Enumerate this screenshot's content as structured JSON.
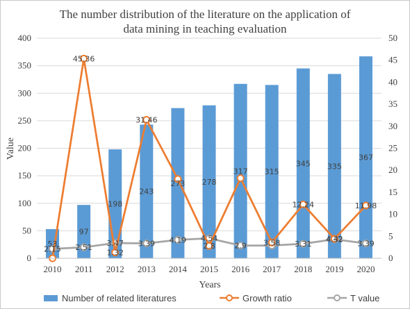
{
  "chart_data": {
    "type": "bar",
    "title_lines": [
      "The number distribution of the literature on the application of",
      "data mining in teaching evaluation"
    ],
    "xlabel": "Years",
    "ylabel": "Value",
    "categories": [
      "2010",
      "2011",
      "2012",
      "2013",
      "2014",
      "2015",
      "2016",
      "2017",
      "2018",
      "2019",
      "2020"
    ],
    "y_left": {
      "min": 0,
      "max": 400,
      "step": 50
    },
    "y_right": {
      "min": 0,
      "max": 50,
      "step": 5
    },
    "grid": true,
    "legend_position": "bottom",
    "series": [
      {
        "name": "Number of related literatures",
        "kind": "bar",
        "axis": "left",
        "color": "#5b9bd5",
        "values": [
          53,
          97,
          198,
          243,
          273,
          278,
          317,
          315,
          345,
          335,
          367
        ],
        "labels": [
          "53",
          "97",
          "198",
          "243",
          "273",
          "278",
          "317",
          "315",
          "345",
          "335",
          "367"
        ]
      },
      {
        "name": "Growth ratio",
        "kind": "line",
        "axis": "right",
        "color": "#ed7d31",
        "values": [
          0,
          45.36,
          1.32,
          31.46,
          18,
          2.8,
          18.2,
          3.58,
          12.24,
          4.42,
          11.98
        ],
        "labels": [
          "",
          "45.36",
          "1.32",
          "31.46",
          "",
          "2.8",
          "",
          "3.58",
          "12.24",
          "4.42",
          "11.98"
        ]
      },
      {
        "name": "T value",
        "kind": "line",
        "axis": "right",
        "color": "#a5a5a5",
        "values": [
          2.15,
          2.51,
          3.47,
          3.39,
          4.19,
          4.54,
          2.9,
          2.9,
          3.31,
          4.32,
          3.39
        ],
        "labels": [
          "2.15",
          "2.51",
          "3.47",
          "3.39",
          "4.19",
          "4.54",
          "2.9",
          "",
          "3.31",
          "4.32",
          "3.39"
        ]
      }
    ]
  }
}
